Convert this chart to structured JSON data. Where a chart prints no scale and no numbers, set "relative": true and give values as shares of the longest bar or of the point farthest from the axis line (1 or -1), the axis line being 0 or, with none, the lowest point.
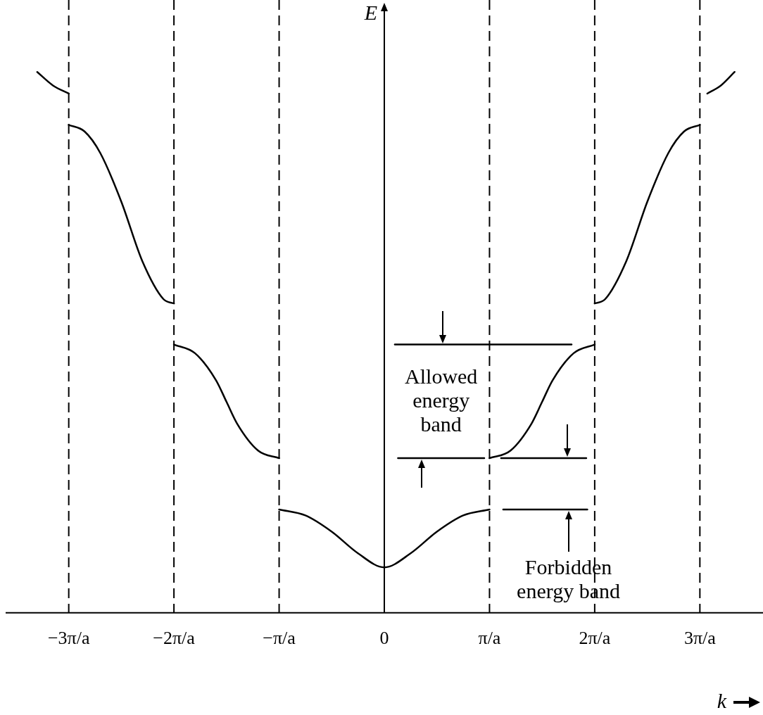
{
  "chart_data": {
    "type": "line",
    "relative": true,
    "xlabel": "k",
    "ylabel": "E",
    "xlim": [
      -3.6,
      3.6
    ],
    "xticks": [
      {
        "value": -3,
        "label": "−3π/a"
      },
      {
        "value": -2,
        "label": "−2π/a"
      },
      {
        "value": -1,
        "label": "−π/a"
      },
      0,
      {
        "value": 1,
        "label": "π/a"
      },
      {
        "value": 2,
        "label": "2π/a"
      },
      {
        "value": 3,
        "label": "3π/a"
      }
    ],
    "marker": "none",
    "line_style": "solid",
    "grid": false,
    "legend": false,
    "series": [
      {
        "color": "#000000",
        "x": [
          -1,
          -0.75,
          -0.5,
          -0.25,
          0,
          0.25,
          0.5,
          0.75,
          1
        ],
        "values": [
          0.191,
          0.18,
          0.15,
          0.11,
          0.084,
          0.11,
          0.15,
          0.18,
          0.191
        ]
      },
      {
        "color": "#000000",
        "x": [
          1,
          1.2,
          1.4,
          1.5,
          1.6,
          1.8,
          2
        ],
        "values": [
          0.286,
          0.3,
          0.35,
          0.39,
          0.43,
          0.48,
          0.496
        ]
      },
      {
        "color": "#000000",
        "x": [
          -2,
          -1.8,
          -1.6,
          -1.5,
          -1.4,
          -1.2,
          -1
        ],
        "values": [
          0.496,
          0.48,
          0.43,
          0.39,
          0.35,
          0.3,
          0.286
        ]
      },
      {
        "color": "#000000",
        "x": [
          2,
          2.1,
          2.3,
          2.5,
          2.7,
          2.85,
          3
        ],
        "values": [
          0.572,
          0.58,
          0.65,
          0.76,
          0.85,
          0.89,
          0.902
        ]
      },
      {
        "color": "#000000",
        "x": [
          -3,
          -2.85,
          -2.7,
          -2.5,
          -2.3,
          -2.1,
          -2
        ],
        "values": [
          0.902,
          0.89,
          0.85,
          0.76,
          0.65,
          0.58,
          0.572
        ]
      },
      {
        "color": "#000000",
        "x": [
          3.07,
          3.2,
          3.33
        ],
        "values": [
          0.96,
          0.975,
          1
        ]
      },
      {
        "color": "#000000",
        "x": [
          -3.3,
          -3.15,
          -3
        ],
        "values": [
          1,
          0.975,
          0.96
        ]
      },
      {
        "color": "#000000",
        "x": [
          0.1,
          1.78
        ],
        "values": [
          0.496,
          0.496
        ]
      },
      {
        "color": "#000000",
        "x": [
          0.13,
          0.95
        ],
        "values": [
          0.286,
          0.286
        ]
      },
      {
        "color": "#000000",
        "x": [
          1.11,
          1.92
        ],
        "values": [
          0.286,
          0.286
        ]
      },
      {
        "color": "#000000",
        "x": [
          1.13,
          1.93
        ],
        "values": [
          0.191,
          0.191
        ]
      }
    ],
    "ref_lines": [
      {
        "axis": "x",
        "value": -3,
        "line_style": "dashed",
        "color": "#000000"
      },
      {
        "axis": "x",
        "value": -2,
        "line_style": "dashed",
        "color": "#000000"
      },
      {
        "axis": "x",
        "value": -1,
        "line_style": "dashed",
        "color": "#000000"
      },
      {
        "axis": "x",
        "value": 1,
        "line_style": "dashed",
        "color": "#000000"
      },
      {
        "axis": "x",
        "value": 2,
        "line_style": "dashed",
        "color": "#000000"
      },
      {
        "axis": "x",
        "value": 3,
        "line_style": "dashed",
        "color": "#000000"
      }
    ],
    "annotations": [
      "Allowed energy band",
      "Forbidden energy band"
    ]
  }
}
